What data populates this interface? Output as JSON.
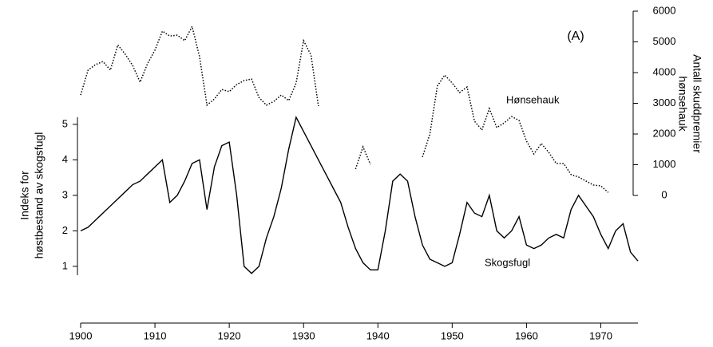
{
  "chart_data": {
    "type": "line",
    "annotations": [
      "(A)",
      "Hønsehauk",
      "Skogsfugl"
    ],
    "ylabel": [
      "Indeks for",
      "høstbestand av skogsfugl"
    ],
    "y2label": [
      "Antall skuddpremier",
      "hønsehauk"
    ],
    "x": [
      1900,
      1901,
      1902,
      1903,
      1904,
      1905,
      1906,
      1907,
      1908,
      1909,
      1910,
      1911,
      1912,
      1913,
      1914,
      1915,
      1916,
      1917,
      1918,
      1919,
      1920,
      1921,
      1922,
      1923,
      1924,
      1925,
      1926,
      1927,
      1928,
      1929,
      1930,
      1931,
      1932,
      1933,
      1934,
      1935,
      1936,
      1937,
      1938,
      1939,
      1940,
      1941,
      1942,
      1943,
      1944,
      1945,
      1946,
      1947,
      1948,
      1949,
      1950,
      1951,
      1952,
      1953,
      1954,
      1955,
      1956,
      1957,
      1958,
      1959,
      1960,
      1961,
      1962,
      1963,
      1964,
      1965,
      1966,
      1967,
      1968,
      1969,
      1970,
      1971,
      1972,
      1973,
      1974,
      1975
    ],
    "series": [
      {
        "name": "Skogsfugl",
        "color": "#000000",
        "dash": "solid",
        "values": [
          2.0,
          2.1,
          2.3,
          2.5,
          2.7,
          2.9,
          3.1,
          3.3,
          3.4,
          3.6,
          3.8,
          4.0,
          2.8,
          3.0,
          3.4,
          3.9,
          4.0,
          2.6,
          3.8,
          4.4,
          4.5,
          3.0,
          1.0,
          0.8,
          1.0,
          1.8,
          2.4,
          3.2,
          4.3,
          5.2,
          4.8,
          4.4,
          4.0,
          3.6,
          3.2,
          2.8,
          2.1,
          1.5,
          1.1,
          0.9,
          0.9,
          2.0,
          3.4,
          3.6,
          3.4,
          2.4,
          1.6,
          1.2,
          1.1,
          1.0,
          1.1,
          1.9,
          2.8,
          2.5,
          2.4,
          3.0,
          2.0,
          1.8,
          2.0,
          2.4,
          1.6,
          1.5,
          1.6,
          1.8,
          1.9,
          1.8,
          2.6,
          3.0,
          2.7,
          2.4,
          1.9,
          1.5,
          2.0,
          2.2,
          1.4,
          1.15
        ]
      },
      {
        "name": "Hønsehauk",
        "color": "#000000",
        "dash": "dotted",
        "axis": "y2",
        "values": [
          3270,
          4080,
          4260,
          4360,
          4080,
          4900,
          4600,
          4230,
          3690,
          4290,
          4730,
          5350,
          5190,
          5220,
          5040,
          5500,
          4520,
          2940,
          3140,
          3450,
          3380,
          3610,
          3740,
          3790,
          3190,
          2940,
          3060,
          3270,
          3090,
          3660,
          5040,
          4570,
          2910,
          null,
          null,
          null,
          null,
          860,
          1580,
          1010,
          null,
          null,
          null,
          null,
          null,
          null,
          1250,
          2000,
          3560,
          3920,
          3660,
          3350,
          3530,
          2420,
          2130,
          2830,
          2210,
          2360,
          2570,
          2440,
          1770,
          1350,
          1690,
          1400,
          1040,
          1040,
          680,
          600,
          470,
          340,
          310,
          100,
          null,
          null,
          null,
          null
        ]
      }
    ],
    "xlim": [
      1900,
      1975
    ],
    "xticks": [
      1900,
      1910,
      1920,
      1930,
      1940,
      1950,
      1960,
      1970
    ],
    "ylim": [
      0.75,
      5.2
    ],
    "yticks": [
      1,
      2,
      3,
      4,
      5
    ],
    "y2lim": [
      0,
      6000
    ],
    "y2ticks": [
      0,
      1000,
      2000,
      3000,
      4000,
      5000,
      6000
    ]
  }
}
